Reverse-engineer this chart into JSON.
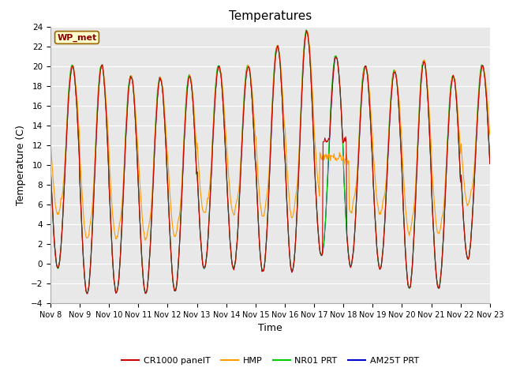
{
  "title": "Temperatures",
  "ylabel": "Temperature (C)",
  "xlabel": "Time",
  "ylim": [
    -4,
    24
  ],
  "yticks": [
    -4,
    -2,
    0,
    2,
    4,
    6,
    8,
    10,
    12,
    14,
    16,
    18,
    20,
    22,
    24
  ],
  "xtick_labels": [
    "Nov 8",
    "Nov 9",
    "Nov 10",
    "Nov 11",
    "Nov 12",
    "Nov 13",
    "Nov 14",
    "Nov 15",
    "Nov 16",
    "Nov 17",
    "Nov 18",
    "Nov 19",
    "Nov 20",
    "Nov 21",
    "Nov 22",
    "Nov 23"
  ],
  "series_colors": {
    "CR1000 panelT": "#cc0000",
    "HMP": "#ff9900",
    "NR01 PRT": "#00cc00",
    "AM25T PRT": "#0000cc"
  },
  "annotation_label": "WP_met",
  "fig_bg_color": "#ffffff",
  "plot_bg_color": "#e8e8e8",
  "grid_color": "#ffffff",
  "title_fontsize": 11,
  "axis_label_fontsize": 9,
  "tick_fontsize": 7.5,
  "legend_fontsize": 8
}
